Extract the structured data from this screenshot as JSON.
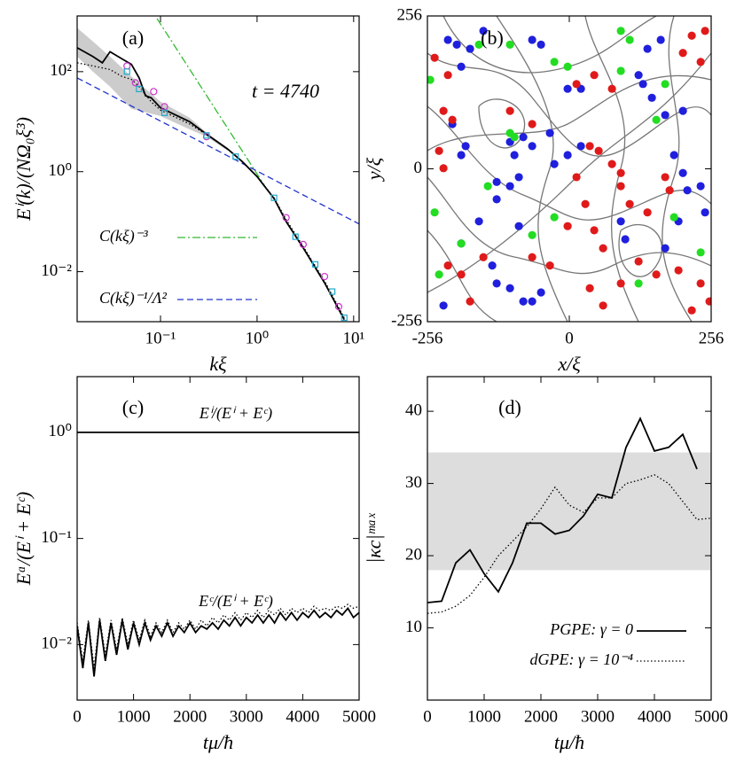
{
  "chart_data": [
    {
      "type": "line",
      "label": "(a)",
      "annotation": "t = 4740",
      "x_label": "kξ",
      "y_label": "Eⁱ(k)/(NΩ₀ξ³)",
      "xscale": "log",
      "yscale": "log",
      "xlim": [
        0.0137,
        11.4
      ],
      "ylim": [
        0.001,
        1300
      ],
      "xticks": [
        {
          "value": 0.1,
          "label": "10⁻¹"
        },
        {
          "value": 1,
          "label": "10⁰"
        },
        {
          "value": 10,
          "label": "10¹"
        }
      ],
      "yticks": [
        {
          "value": 0.01,
          "label": "10⁻²"
        },
        {
          "value": 1,
          "label": "10⁰"
        },
        {
          "value": 100,
          "label": "10²"
        }
      ],
      "legend": "lower left",
      "series": [
        {
          "style": "band",
          "color": "#cccccc",
          "x": [
            0.0137,
            0.02,
            0.03,
            0.05,
            0.1,
            0.2,
            0.3,
            0.5
          ],
          "lower": [
            200,
            100,
            50,
            18,
            13,
            7,
            5,
            2.6
          ],
          "upper": [
            750,
            400,
            200,
            80,
            25,
            12,
            6,
            3
          ]
        },
        {
          "name": "C(kξ)⁻³",
          "style": "dashdot",
          "color": "#33bb33",
          "x": [
            0.092,
            1.2
          ],
          "values": [
            1150,
            0.52
          ]
        },
        {
          "name": "C(kξ)⁻¹/Λ²",
          "style": "dashed",
          "color": "#2233cc",
          "x": [
            0.0137,
            11.4
          ],
          "values": [
            75,
            0.09
          ]
        },
        {
          "style": "dotted",
          "color": "#000000",
          "x": [
            0.0137,
            0.02,
            0.03,
            0.04,
            0.05,
            0.06,
            0.08,
            0.1,
            0.2,
            0.3,
            0.5,
            0.7,
            1,
            1.5,
            2,
            3,
            5,
            8
          ],
          "values": [
            150,
            130,
            110,
            80,
            70,
            50,
            25,
            17,
            9,
            5.5,
            2.8,
            1.6,
            0.8,
            0.3,
            0.11,
            0.032,
            0.0065,
            0.0012
          ]
        },
        {
          "style": "solid",
          "color": "#000000",
          "x": [
            0.0137,
            0.02,
            0.025,
            0.03,
            0.04,
            0.05,
            0.06,
            0.07,
            0.08,
            0.1,
            0.2,
            0.3,
            0.5,
            0.7,
            1,
            1.5,
            2,
            3,
            5,
            8
          ],
          "values": [
            300,
            200,
            150,
            250,
            180,
            140,
            75,
            33,
            30,
            19,
            10,
            5.6,
            2.8,
            1.6,
            0.8,
            0.29,
            0.1,
            0.03,
            0.006,
            0.0011
          ]
        },
        {
          "style": "circle",
          "color": "#cc33cc",
          "x": [
            0.045,
            0.055,
            0.085,
            0.11,
            0.3,
            2,
            3,
            5,
            7
          ],
          "values": [
            130,
            60,
            40,
            20,
            5,
            0.12,
            0.035,
            0.008,
            0.002
          ]
        },
        {
          "style": "square",
          "color": "#22aacc",
          "x": [
            0.045,
            0.06,
            0.11,
            0.3,
            0.6,
            1.5,
            2.5,
            4,
            6,
            8
          ],
          "values": [
            100,
            45,
            15,
            5.3,
            2,
            0.3,
            0.05,
            0.014,
            0.004,
            0.0012
          ]
        }
      ]
    },
    {
      "type": "scatter",
      "label": "(b)",
      "x_label": "x/ξ",
      "y_label": "y/ξ",
      "xlim": [
        -256,
        256
      ],
      "ylim": [
        -256,
        256
      ],
      "xticks": [
        -256,
        0,
        256
      ],
      "yticks": [
        -256,
        0,
        256
      ],
      "series": [
        {
          "color": "#1f1fdd",
          "x": [
            -219,
            -203,
            -179,
            -155,
            -195,
            -67,
            -51,
            -195,
            -187,
            -211,
            -107,
            -99,
            -83,
            -67,
            -131,
            -107,
            -91,
            -131,
            21,
            -3,
            -27,
            -35,
            -3,
            21,
            93,
            101,
            125,
            133,
            141,
            165,
            149,
            173,
            205,
            189,
            205,
            245,
            -195,
            -163,
            -139,
            -131,
            -107,
            -83,
            -67,
            -51,
            -227,
            -91,
            173,
            197,
            213,
            237
          ],
          "values": [
            216,
            208,
            201,
            231,
            171,
            216,
            208,
            23,
            38,
            75,
            45,
            23,
            53,
            38,
            -22,
            -29,
            -14,
            -51,
            38,
            23,
            8,
            60,
            134,
            134,
            -88,
            -118,
            157,
            142,
            201,
            216,
            119,
            90,
            97,
            23,
            -7,
            -73,
            -125,
            -88,
            -162,
            -192,
            -200,
            -222,
            -222,
            -207,
            -229,
            -96,
            -133,
            -88,
            -36,
            -29
          ]
        },
        {
          "color": "#e01a1a",
          "x": [
            -243,
            -219,
            -227,
            -211,
            -235,
            -227,
            -107,
            -67,
            13,
            45,
            77,
            221,
            245,
            237,
            205,
            37,
            53,
            77,
            93,
            13,
            29,
            45,
            61,
            93,
            109,
            141,
            173,
            181,
            125,
            157,
            197,
            237,
            253,
            221,
            37,
            61,
            93,
            -219,
            -195,
            -179,
            -3,
            -67,
            -35,
            -155
          ],
          "values": [
            186,
            157,
            97,
            82,
            30,
            1,
            97,
            75,
            142,
            157,
            134,
            223,
            231,
            179,
            194,
            38,
            30,
            8,
            -7,
            -14,
            -59,
            -103,
            -133,
            -29,
            -59,
            -73,
            -14,
            -36,
            -155,
            -177,
            -170,
            -192,
            -222,
            -237,
            -200,
            -229,
            -192,
            -162,
            -177,
            -222,
            -96,
            -148,
            -162,
            -148
          ]
        },
        {
          "color": "#22dd22",
          "x": [
            -251,
            -163,
            -107,
            -27,
            -3,
            93,
            109,
            93,
            173,
            -107,
            -99,
            -147,
            -243,
            -195,
            -235,
            -67,
            -27,
            189,
            237,
            157,
            125
          ],
          "values": [
            149,
            208,
            208,
            179,
            171,
            231,
            216,
            164,
            142,
            60,
            53,
            -29,
            -73,
            -125,
            -177,
            -111,
            -81,
            -81,
            -140,
            82,
            -192
          ]
        }
      ]
    },
    {
      "type": "line",
      "label": "(c)",
      "x_label": "tμ/ħ",
      "y_label": "Eᵅ/(Eⁱ + Eᶜ)",
      "xscale": "linear",
      "yscale": "log",
      "xlim": [
        0,
        5000
      ],
      "ylim": [
        0.003,
        3.35
      ],
      "xticks": [
        0,
        1000,
        2000,
        3000,
        4000,
        5000
      ],
      "yticks": [
        {
          "value": 0.01,
          "label": "10⁻²"
        },
        {
          "value": 0.1,
          "label": "10⁻¹"
        },
        {
          "value": 1,
          "label": "10⁰"
        }
      ],
      "x": [
        0,
        100,
        200,
        300,
        400,
        500,
        600,
        700,
        800,
        900,
        1000,
        1100,
        1200,
        1300,
        1400,
        1500,
        1600,
        1700,
        1800,
        1900,
        2000,
        2100,
        2200,
        2300,
        2400,
        2500,
        2600,
        2700,
        2800,
        2900,
        3000,
        3100,
        3200,
        3300,
        3400,
        3500,
        3600,
        3700,
        3800,
        3900,
        4000,
        4100,
        4200,
        4300,
        4400,
        4500,
        4600,
        4700,
        4800,
        4900,
        5000
      ],
      "series": [
        {
          "name": "Eⁱ/(Eⁱ + Eᶜ)",
          "style": "solid",
          "color": "#000000",
          "values": [
            1,
            1,
            1,
            1,
            1,
            1,
            1,
            1,
            1,
            1,
            1,
            1,
            1,
            1,
            1,
            1,
            1,
            1,
            1,
            1,
            1,
            1,
            1,
            1,
            1,
            1,
            1,
            1,
            1,
            1,
            1,
            1,
            1,
            1,
            1,
            1,
            1,
            1,
            1,
            1,
            1,
            1,
            1,
            1,
            1,
            1,
            1,
            1,
            1,
            1,
            1
          ]
        },
        {
          "style": "dotted",
          "color": "#000000",
          "values": [
            0.016,
            0.007,
            0.017,
            0.006,
            0.018,
            0.008,
            0.017,
            0.009,
            0.018,
            0.01,
            0.017,
            0.011,
            0.017,
            0.012,
            0.016,
            0.013,
            0.017,
            0.013,
            0.016,
            0.014,
            0.017,
            0.014,
            0.017,
            0.015,
            0.018,
            0.016,
            0.019,
            0.017,
            0.02,
            0.017,
            0.02,
            0.018,
            0.021,
            0.018,
            0.021,
            0.019,
            0.022,
            0.019,
            0.022,
            0.02,
            0.022,
            0.02,
            0.023,
            0.021,
            0.022,
            0.021,
            0.023,
            0.022,
            0.024,
            0.022,
            0.023
          ]
        },
        {
          "name": "Eᶜ/(Eⁱ + Eᶜ)",
          "style": "solid",
          "color": "#000000",
          "values": [
            0.015,
            0.006,
            0.016,
            0.005,
            0.017,
            0.007,
            0.016,
            0.008,
            0.017,
            0.009,
            0.016,
            0.01,
            0.016,
            0.011,
            0.015,
            0.012,
            0.016,
            0.012,
            0.015,
            0.013,
            0.016,
            0.013,
            0.015,
            0.014,
            0.016,
            0.014,
            0.017,
            0.015,
            0.018,
            0.015,
            0.018,
            0.016,
            0.019,
            0.016,
            0.019,
            0.016,
            0.02,
            0.017,
            0.02,
            0.017,
            0.02,
            0.018,
            0.021,
            0.018,
            0.02,
            0.018,
            0.021,
            0.019,
            0.022,
            0.018,
            0.02
          ]
        }
      ]
    },
    {
      "type": "line",
      "label": "(d)",
      "x_label": "tμ/ħ",
      "y_label": "|κc|ᵐᵃˣ",
      "xscale": "linear",
      "yscale": "linear",
      "xlim": [
        0,
        5000
      ],
      "ylim": [
        0,
        44.8
      ],
      "xticks": [
        0,
        1000,
        2000,
        3000,
        4000,
        5000
      ],
      "yticks": [
        10,
        20,
        30,
        40
      ],
      "band": [
        18,
        34.3
      ],
      "band_color": "#dddddd",
      "legend": "lower left",
      "series": [
        {
          "name": "PGPE: γ = 0",
          "style": "solid",
          "color": "#000000",
          "x": [
            0,
            250,
            500,
            750,
            1000,
            1250,
            1500,
            1750,
            2000,
            2250,
            2500,
            2750,
            3000,
            3250,
            3500,
            3750,
            4000,
            4250,
            4500,
            4750
          ],
          "values": [
            13.5,
            13.7,
            19,
            20.8,
            17.5,
            15,
            19,
            24.5,
            24.5,
            23,
            23.5,
            25.5,
            28.5,
            28,
            35,
            39,
            34.5,
            35,
            36.8,
            32
          ]
        },
        {
          "name": "dGPE: γ = 10⁻⁴",
          "style": "dotted",
          "color": "#000000",
          "x": [
            0,
            250,
            500,
            750,
            1000,
            1250,
            1500,
            1750,
            2000,
            2250,
            2500,
            2750,
            3000,
            3250,
            3500,
            3750,
            4000,
            4250,
            4500,
            4750,
            5000
          ],
          "values": [
            12,
            12.2,
            13,
            14.5,
            17,
            20,
            22,
            24,
            26.5,
            29.5,
            27,
            26,
            28,
            28,
            30,
            30.5,
            31.2,
            30,
            27.5,
            25,
            25.2
          ]
        }
      ]
    }
  ]
}
